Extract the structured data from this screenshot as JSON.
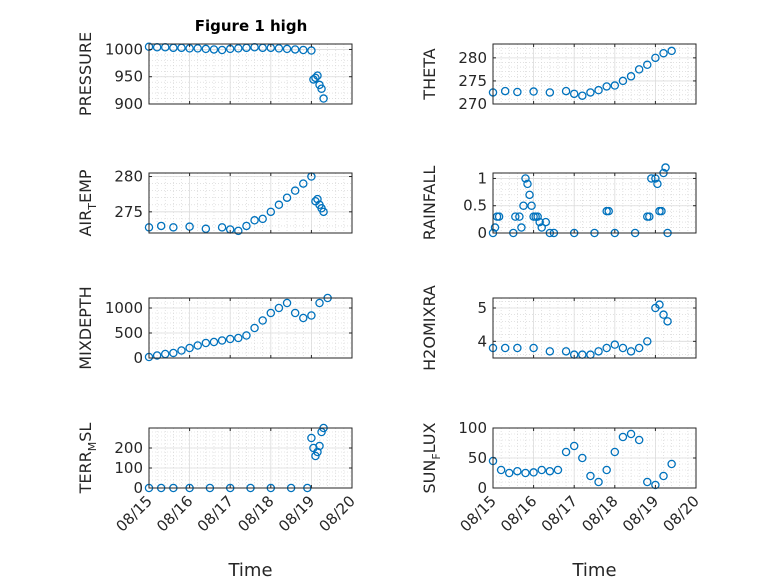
{
  "figure_title": "Figure 1 high",
  "marker_color": "#0072BD",
  "chart_data": [
    {
      "type": "scatter",
      "ylabel": "PRESSURE",
      "ylabel_sub": "",
      "ylabel_rest": "",
      "ylim": [
        900,
        1010
      ],
      "yticks": [
        900,
        950,
        1000
      ],
      "grid": true,
      "x": [
        15.0,
        15.2,
        15.4,
        15.6,
        15.8,
        16.0,
        16.2,
        16.4,
        16.6,
        16.8,
        17.0,
        17.2,
        17.4,
        17.6,
        17.8,
        18.0,
        18.2,
        18.4,
        18.6,
        18.8,
        19.0,
        19.05,
        19.1,
        19.15,
        19.2,
        19.25,
        19.3
      ],
      "y": [
        1005,
        1004,
        1004,
        1003,
        1003,
        1002,
        1002,
        1001,
        1000,
        999,
        1001,
        1002,
        1003,
        1004,
        1003,
        1003,
        1002,
        1001,
        1000,
        999,
        998,
        945,
        948,
        952,
        935,
        928,
        910
      ]
    },
    {
      "type": "scatter",
      "ylabel": "THETA",
      "ylabel_sub": "",
      "ylabel_rest": "",
      "ylim": [
        270,
        283
      ],
      "yticks": [
        270,
        275,
        280
      ],
      "grid": true,
      "x": [
        15.0,
        15.3,
        15.6,
        16.0,
        16.4,
        16.8,
        17.0,
        17.2,
        17.4,
        17.6,
        17.8,
        18.0,
        18.2,
        18.4,
        18.6,
        18.8,
        19.0,
        19.2,
        19.4
      ],
      "y": [
        272.5,
        272.8,
        272.6,
        272.7,
        272.5,
        272.8,
        272.2,
        271.8,
        272.5,
        273.0,
        273.8,
        274.0,
        275.0,
        276.0,
        277.5,
        278.5,
        280.0,
        281.0,
        281.5
      ]
    },
    {
      "type": "scatter",
      "ylabel": "AIR",
      "ylabel_sub": "T",
      "ylabel_rest": "EMP",
      "ylim": [
        272,
        280.5
      ],
      "yticks": [
        275,
        280
      ],
      "grid": true,
      "x": [
        15.0,
        15.3,
        15.6,
        16.0,
        16.4,
        16.8,
        17.0,
        17.2,
        17.4,
        17.6,
        17.8,
        18.0,
        18.2,
        18.4,
        18.6,
        18.8,
        19.0,
        19.1,
        19.15,
        19.2,
        19.25,
        19.3
      ],
      "y": [
        272.8,
        273.0,
        272.8,
        272.9,
        272.6,
        272.8,
        272.5,
        272.3,
        273.0,
        273.8,
        274.0,
        275.0,
        276.0,
        277.0,
        278.0,
        279.0,
        280.0,
        276.5,
        276.8,
        276.0,
        275.5,
        275.0
      ]
    },
    {
      "type": "scatter",
      "ylabel": "RAINFALL",
      "ylabel_sub": "",
      "ylabel_rest": "",
      "ylim": [
        0,
        1.1
      ],
      "yticks": [
        0,
        0.5,
        1
      ],
      "grid": true,
      "x": [
        15.0,
        15.05,
        15.1,
        15.15,
        15.5,
        15.55,
        15.65,
        15.7,
        15.75,
        15.8,
        15.85,
        15.9,
        15.95,
        16.0,
        16.05,
        16.1,
        16.15,
        16.2,
        16.3,
        16.4,
        16.5,
        17.0,
        17.5,
        17.8,
        17.85,
        18.0,
        18.5,
        18.8,
        18.85,
        18.9,
        19.0,
        19.05,
        19.1,
        19.15,
        19.2,
        19.25,
        19.3
      ],
      "y": [
        0,
        0.1,
        0.3,
        0.3,
        0,
        0.3,
        0.3,
        0.1,
        0.5,
        1.0,
        0.9,
        0.7,
        0.5,
        0.3,
        0.3,
        0.3,
        0.2,
        0.1,
        0.2,
        0,
        0,
        0,
        0,
        0.4,
        0.4,
        0,
        0,
        0.3,
        0.3,
        1.0,
        1.0,
        0.9,
        0.4,
        0.4,
        1.1,
        1.2,
        0
      ]
    },
    {
      "type": "scatter",
      "ylabel": "MIXDEPTH",
      "ylabel_sub": "",
      "ylabel_rest": "",
      "ylim": [
        0,
        1200
      ],
      "yticks": [
        0,
        500,
        1000
      ],
      "grid": true,
      "x": [
        15.0,
        15.2,
        15.4,
        15.6,
        15.8,
        16.0,
        16.2,
        16.4,
        16.6,
        16.8,
        17.0,
        17.2,
        17.4,
        17.6,
        17.8,
        18.0,
        18.2,
        18.4,
        18.6,
        18.8,
        19.0,
        19.2,
        19.4
      ],
      "y": [
        20,
        50,
        80,
        100,
        150,
        200,
        250,
        300,
        320,
        350,
        380,
        400,
        450,
        600,
        750,
        900,
        1000,
        1100,
        900,
        800,
        850,
        1100,
        1200
      ]
    },
    {
      "type": "scatter",
      "ylabel": "H2OMIXRA",
      "ylabel_sub": "",
      "ylabel_rest": "",
      "ylim": [
        3.5,
        5.3
      ],
      "yticks": [
        4,
        5
      ],
      "grid": true,
      "x": [
        15.0,
        15.3,
        15.6,
        16.0,
        16.4,
        16.8,
        17.0,
        17.2,
        17.4,
        17.6,
        17.8,
        18.0,
        18.2,
        18.4,
        18.6,
        18.8,
        19.0,
        19.1,
        19.2,
        19.3
      ],
      "y": [
        3.8,
        3.8,
        3.8,
        3.8,
        3.7,
        3.7,
        3.6,
        3.6,
        3.6,
        3.7,
        3.8,
        3.9,
        3.8,
        3.7,
        3.8,
        4.0,
        5.0,
        5.1,
        4.8,
        4.6
      ]
    },
    {
      "type": "scatter",
      "ylabel": "TERR",
      "ylabel_sub": "M",
      "ylabel_rest": "SL",
      "ylim": [
        0,
        300
      ],
      "yticks": [
        0,
        100,
        200
      ],
      "grid": true,
      "x": [
        15.0,
        15.3,
        15.6,
        16.0,
        16.5,
        17.0,
        17.5,
        18.0,
        18.5,
        18.9,
        19.0,
        19.05,
        19.1,
        19.15,
        19.2,
        19.25,
        19.3
      ],
      "y": [
        0,
        0,
        0,
        0,
        0,
        0,
        0,
        0,
        0,
        0,
        250,
        200,
        160,
        180,
        210,
        280,
        300
      ]
    },
    {
      "type": "scatter",
      "ylabel": "SUN",
      "ylabel_sub": "F",
      "ylabel_rest": "LUX",
      "ylim": [
        0,
        100
      ],
      "yticks": [
        0,
        50,
        100
      ],
      "grid": true,
      "x": [
        15.0,
        15.2,
        15.4,
        15.6,
        15.8,
        16.0,
        16.2,
        16.4,
        16.6,
        16.8,
        17.0,
        17.2,
        17.4,
        17.6,
        17.8,
        18.0,
        18.2,
        18.4,
        18.6,
        18.8,
        19.0,
        19.2,
        19.4
      ],
      "y": [
        45,
        30,
        25,
        28,
        25,
        26,
        30,
        28,
        30,
        60,
        70,
        50,
        20,
        10,
        30,
        60,
        85,
        90,
        80,
        10,
        5,
        20,
        40
      ]
    }
  ],
  "xaxis": {
    "label": "Time",
    "xlim": [
      15,
      20
    ],
    "ticks": [
      15,
      16,
      17,
      18,
      19,
      20
    ],
    "ticklabels": [
      "08/15",
      "08/16",
      "08/17",
      "08/18",
      "08/19",
      "08/20"
    ]
  }
}
